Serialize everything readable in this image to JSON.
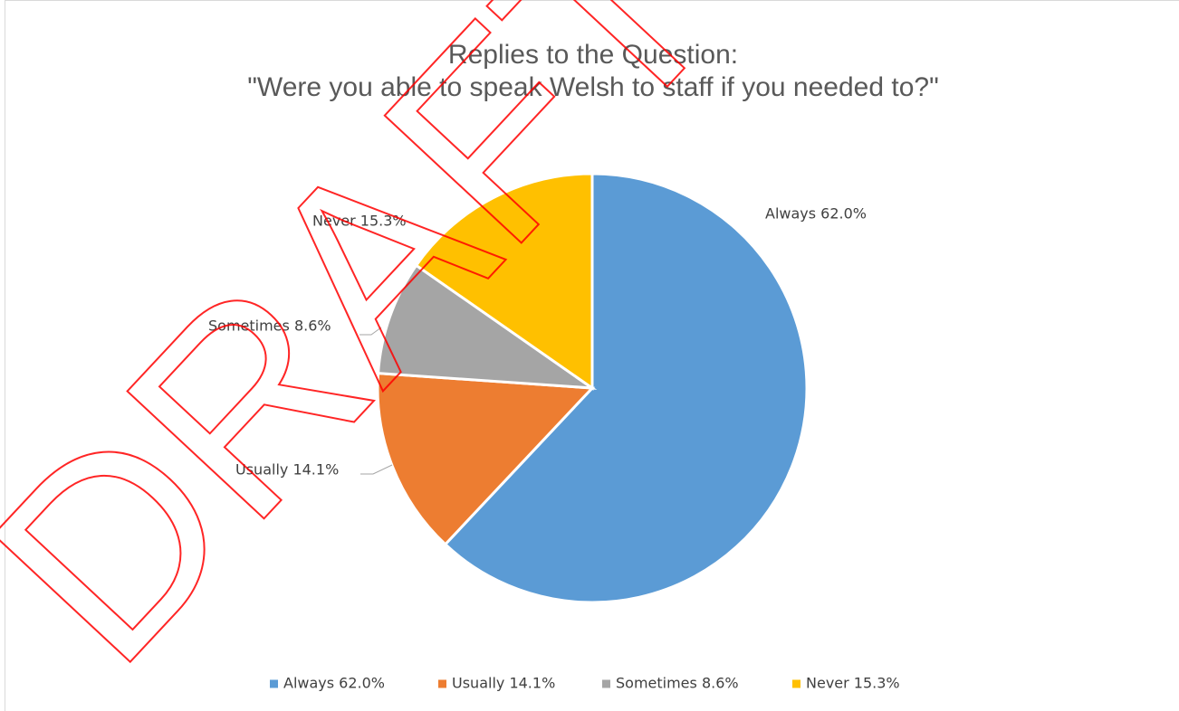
{
  "chart_data": {
    "type": "pie",
    "title": "Replies to the Question:",
    "subtitle": "\"Were you able to speak Welsh to staff if you needed to?\"",
    "categories": [
      "Always 62.0%",
      "Usually 14.1%",
      "Sometimes 8.6%",
      "Never 15.3%"
    ],
    "values": [
      62.0,
      14.1,
      8.6,
      15.3
    ],
    "value_labels": [
      "Always 62.0%",
      "Usually 14.1%",
      "Sometimes 8.6%",
      "Never 15.3%"
    ],
    "colors": [
      "#5b9bd5",
      "#ed7d31",
      "#a5a5a5",
      "#ffc000"
    ],
    "legend": "bottom",
    "watermark": "DRAFT"
  }
}
